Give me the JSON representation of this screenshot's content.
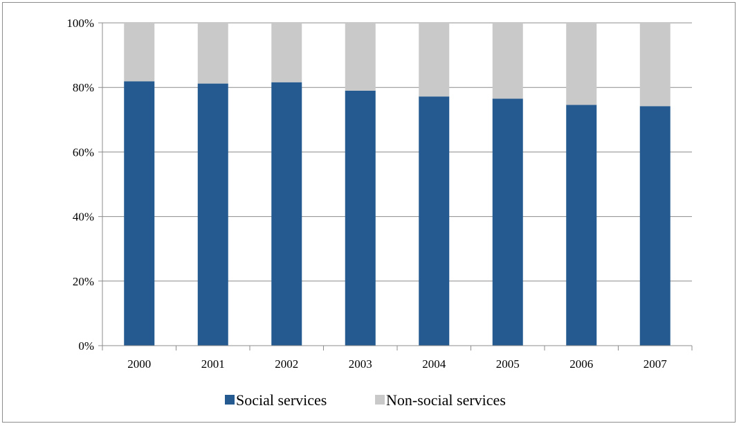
{
  "chart_data": {
    "type": "bar",
    "stacked": true,
    "categories": [
      "2000",
      "2001",
      "2002",
      "2003",
      "2004",
      "2005",
      "2006",
      "2007"
    ],
    "series": [
      {
        "name": "Social services",
        "color": "#245a8f",
        "values": [
          81.9,
          81.2,
          81.6,
          79.0,
          77.2,
          76.5,
          74.6,
          74.2
        ]
      },
      {
        "name": "Non-social services",
        "color": "#c9c9c9",
        "values": [
          18.1,
          18.8,
          18.4,
          21.0,
          22.8,
          23.5,
          25.4,
          25.8
        ]
      }
    ],
    "ylim": [
      0,
      100
    ],
    "yticks": [
      0,
      20,
      40,
      60,
      80,
      100
    ],
    "ytick_labels": [
      "0%",
      "20%",
      "40%",
      "60%",
      "80%",
      "100%"
    ],
    "grid": true,
    "legend_position": "bottom"
  }
}
